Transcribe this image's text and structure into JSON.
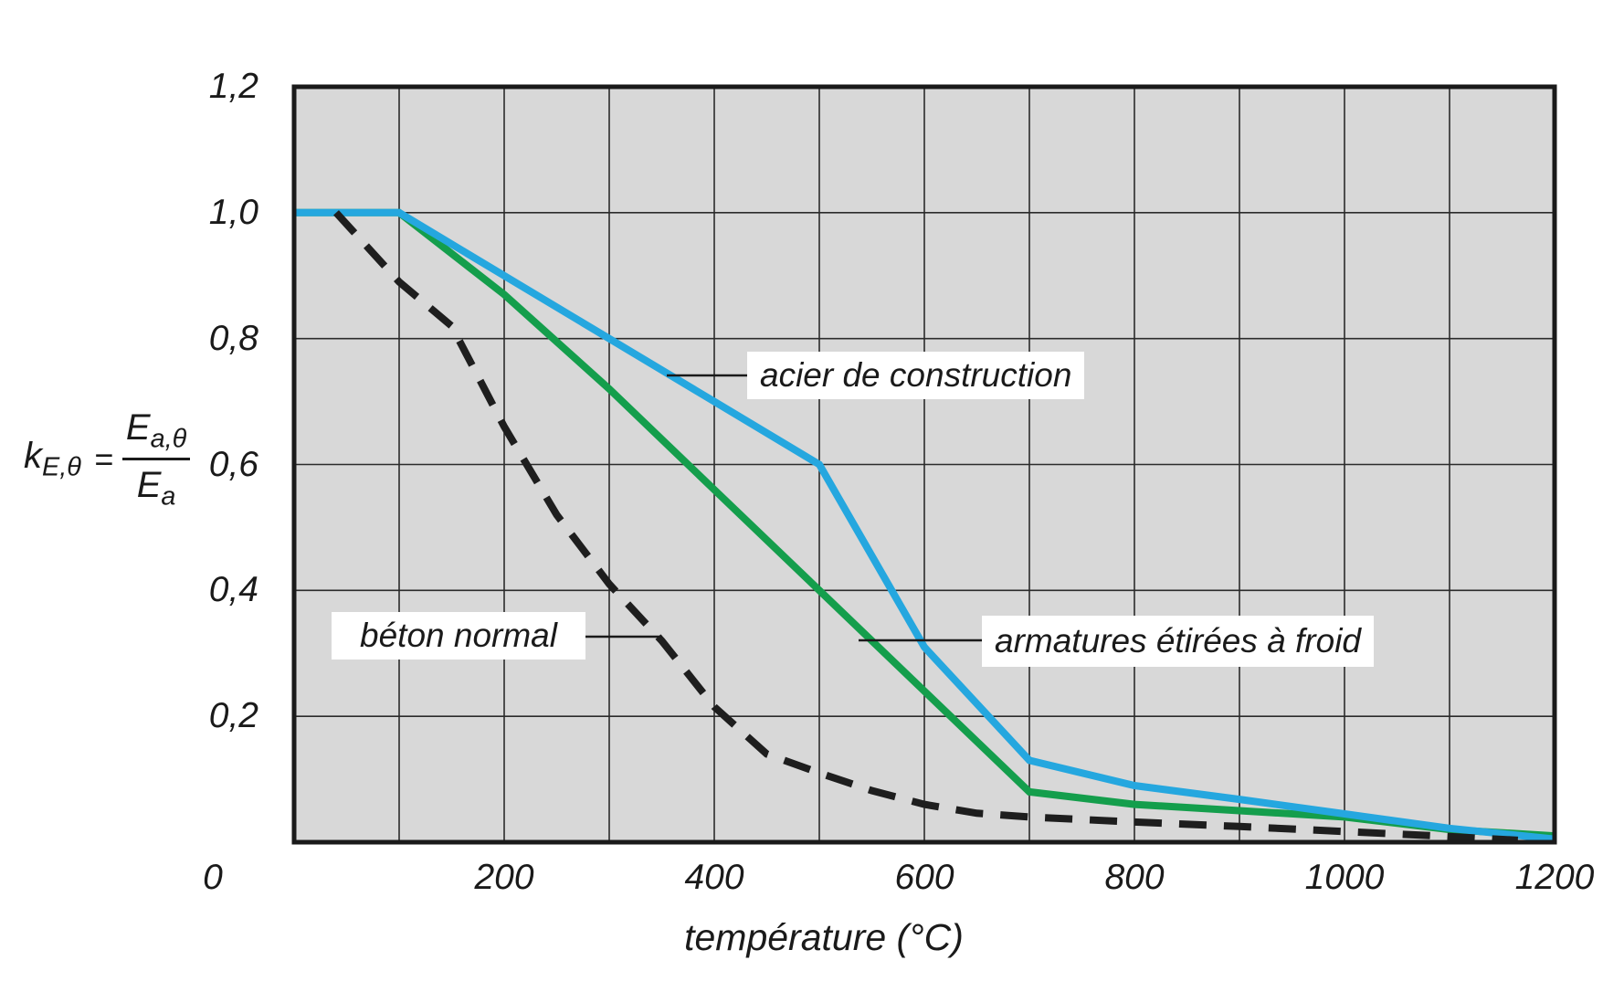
{
  "figure": {
    "x_axis_title": "température (°C)",
    "y_axis_formula": {
      "lhs_base": "k",
      "lhs_sub": "E,θ",
      "equals": "=",
      "numerator_base": "E",
      "numerator_sub": "a,θ",
      "denominator_base": "E",
      "denominator_sub": "a"
    }
  },
  "chart_data": {
    "type": "line",
    "title": "",
    "xlabel": "température (°C)",
    "ylabel": "k_E,θ = E_a,θ / E_a",
    "xlim": [
      0,
      1200
    ],
    "ylim": [
      0,
      1.2
    ],
    "x_ticks": [
      0,
      200,
      400,
      600,
      800,
      1000,
      1200
    ],
    "x_tick_labels": [
      "0",
      "200",
      "400",
      "600",
      "800",
      "1000",
      "1200"
    ],
    "y_ticks": [
      0.2,
      0.4,
      0.6,
      0.8,
      1.0,
      1.2
    ],
    "y_tick_labels": [
      "0,2",
      "0,4",
      "0,6",
      "0,8",
      "1,0",
      "1,2"
    ],
    "x_grid_step": 100,
    "y_grid_step": 0.2,
    "grid": true,
    "legend_position": "labels-on-chart",
    "plot_background": "#d8d8d8",
    "grid_color": "#2b2b2b",
    "border_color": "#1a1a1a",
    "series": [
      {
        "name": "acier de construction",
        "color": "#25a7df",
        "style": "solid",
        "x": [
          0,
          100,
          200,
          300,
          400,
          500,
          600,
          700,
          800,
          900,
          1000,
          1100,
          1200
        ],
        "y": [
          1.0,
          1.0,
          0.9,
          0.8,
          0.7,
          0.6,
          0.31,
          0.13,
          0.09,
          0.068,
          0.045,
          0.022,
          0.005
        ]
      },
      {
        "name": "armatures étirées à froid",
        "color": "#149e4c",
        "style": "solid",
        "x": [
          0,
          100,
          200,
          300,
          400,
          500,
          600,
          700,
          800,
          900,
          1000,
          1100,
          1200
        ],
        "y": [
          1.0,
          1.0,
          0.87,
          0.72,
          0.56,
          0.4,
          0.24,
          0.08,
          0.06,
          0.05,
          0.04,
          0.02,
          0.01
        ]
      },
      {
        "name": "béton normal",
        "color": "#1e1e1e",
        "style": "dashed",
        "x": [
          40,
          100,
          150,
          200,
          250,
          300,
          350,
          400,
          450,
          500,
          550,
          600,
          650,
          700,
          800,
          900,
          1000,
          1100,
          1165
        ],
        "y": [
          1.0,
          0.89,
          0.82,
          0.66,
          0.52,
          0.41,
          0.32,
          0.215,
          0.14,
          0.11,
          0.082,
          0.06,
          0.046,
          0.04,
          0.032,
          0.025,
          0.017,
          0.009,
          0.003
        ]
      }
    ],
    "annotations": [
      {
        "text": "acier de construction",
        "series": "acier de construction"
      },
      {
        "text": "armatures étirées à froid",
        "series": "armatures étirées à froid"
      },
      {
        "text": "béton normal",
        "series": "béton normal"
      }
    ]
  }
}
